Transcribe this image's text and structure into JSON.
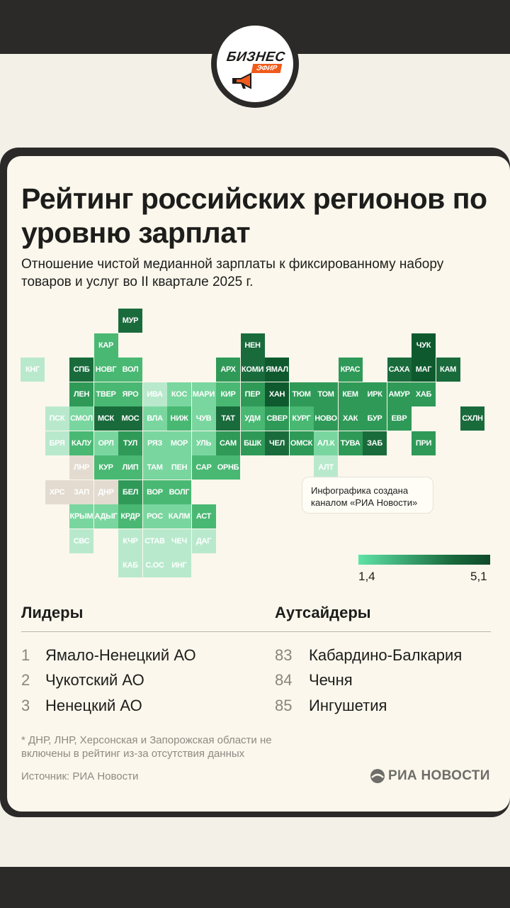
{
  "logo": {
    "word": "БИЗНЕС",
    "sub": "ЭФИР"
  },
  "title": "Рейтинг российских регионов по уровню зарплат",
  "subtitle": "Отношение чистой медианной зарплаты к фиксированному набору товаров и услуг во II квартале 2025 г.",
  "colors": {
    "c1": "#1a6b3c",
    "c2": "#0e5a2e",
    "c3": "#2f9a58",
    "c4": "#49b873",
    "c5": "#7ad69f",
    "c6": "#b9e9cd",
    "grey": "#e3dbd0",
    "accent": "#f05a1a"
  },
  "map": {
    "tiles": [
      {
        "label": "МУР",
        "col": 5,
        "row": 0,
        "c": "c1"
      },
      {
        "label": "НЕН",
        "col": 10,
        "row": 1,
        "c": "c1"
      },
      {
        "label": "ЧУК",
        "col": 17,
        "row": 1,
        "c": "c2"
      },
      {
        "label": "КАР",
        "col": 4,
        "row": 1,
        "c": "c4"
      },
      {
        "label": "КНГ",
        "col": 1,
        "row": 2,
        "c": "c6"
      },
      {
        "label": "СПБ",
        "col": 3,
        "row": 2,
        "c": "c1"
      },
      {
        "label": "НОВГ",
        "col": 4,
        "row": 2,
        "c": "c4"
      },
      {
        "label": "ВОЛ",
        "col": 5,
        "row": 2,
        "c": "c4"
      },
      {
        "label": "АРХ",
        "col": 9,
        "row": 2,
        "c": "c3"
      },
      {
        "label": "КОМИ",
        "col": 10,
        "row": 2,
        "c": "c1"
      },
      {
        "label": "ЯМАЛ",
        "col": 11,
        "row": 2,
        "c": "c2"
      },
      {
        "label": "КРАС",
        "col": 14,
        "row": 2,
        "c": "c3"
      },
      {
        "label": "САХА",
        "col": 16,
        "row": 2,
        "c": "c1"
      },
      {
        "label": "МАГ",
        "col": 17,
        "row": 2,
        "c": "c2"
      },
      {
        "label": "КАМ",
        "col": 18,
        "row": 2,
        "c": "c1"
      },
      {
        "label": "ЛЕН",
        "col": 3,
        "row": 3,
        "c": "c3"
      },
      {
        "label": "ТВЕР",
        "col": 4,
        "row": 3,
        "c": "c4"
      },
      {
        "label": "ЯРО",
        "col": 5,
        "row": 3,
        "c": "c4"
      },
      {
        "label": "ИВА",
        "col": 6,
        "row": 3,
        "c": "c6"
      },
      {
        "label": "КОС",
        "col": 7,
        "row": 3,
        "c": "c5"
      },
      {
        "label": "МАРИ",
        "col": 8,
        "row": 3,
        "c": "c5"
      },
      {
        "label": "КИР",
        "col": 9,
        "row": 3,
        "c": "c4"
      },
      {
        "label": "ПЕР",
        "col": 10,
        "row": 3,
        "c": "c3"
      },
      {
        "label": "ХАН",
        "col": 11,
        "row": 3,
        "c": "c2"
      },
      {
        "label": "ТЮМ",
        "col": 12,
        "row": 3,
        "c": "c3"
      },
      {
        "label": "ТОМ",
        "col": 13,
        "row": 3,
        "c": "c3"
      },
      {
        "label": "КЕМ",
        "col": 14,
        "row": 3,
        "c": "c3"
      },
      {
        "label": "ИРК",
        "col": 15,
        "row": 3,
        "c": "c3"
      },
      {
        "label": "АМУР",
        "col": 16,
        "row": 3,
        "c": "c3"
      },
      {
        "label": "ХАБ",
        "col": 17,
        "row": 3,
        "c": "c3"
      },
      {
        "label": "ПСК",
        "col": 2,
        "row": 4,
        "c": "c6"
      },
      {
        "label": "СМОЛ",
        "col": 3,
        "row": 4,
        "c": "c5"
      },
      {
        "label": "МСК",
        "col": 4,
        "row": 4,
        "c": "c1"
      },
      {
        "label": "МОС",
        "col": 5,
        "row": 4,
        "c": "c1"
      },
      {
        "label": "ВЛА",
        "col": 6,
        "row": 4,
        "c": "c5"
      },
      {
        "label": "НИЖ",
        "col": 7,
        "row": 4,
        "c": "c4"
      },
      {
        "label": "ЧУВ",
        "col": 8,
        "row": 4,
        "c": "c5"
      },
      {
        "label": "ТАТ",
        "col": 9,
        "row": 4,
        "c": "c1"
      },
      {
        "label": "УДМ",
        "col": 10,
        "row": 4,
        "c": "c4"
      },
      {
        "label": "СВЕР",
        "col": 11,
        "row": 4,
        "c": "c3"
      },
      {
        "label": "КУРГ",
        "col": 12,
        "row": 4,
        "c": "c4"
      },
      {
        "label": "НОВО",
        "col": 13,
        "row": 4,
        "c": "c3"
      },
      {
        "label": "ХАК",
        "col": 14,
        "row": 4,
        "c": "c3"
      },
      {
        "label": "БУР",
        "col": 15,
        "row": 4,
        "c": "c3"
      },
      {
        "label": "ЕВР",
        "col": 16,
        "row": 4,
        "c": "c3"
      },
      {
        "label": "СХЛН",
        "col": 19,
        "row": 4,
        "c": "c1"
      },
      {
        "label": "БРЯ",
        "col": 2,
        "row": 5,
        "c": "c6"
      },
      {
        "label": "КАЛУ",
        "col": 3,
        "row": 5,
        "c": "c4"
      },
      {
        "label": "ОРЛ",
        "col": 4,
        "row": 5,
        "c": "c5"
      },
      {
        "label": "ТУЛ",
        "col": 5,
        "row": 5,
        "c": "c3"
      },
      {
        "label": "РЯЗ",
        "col": 6,
        "row": 5,
        "c": "c5"
      },
      {
        "label": "МОР",
        "col": 7,
        "row": 5,
        "c": "c5"
      },
      {
        "label": "УЛЬ",
        "col": 8,
        "row": 5,
        "c": "c5"
      },
      {
        "label": "САМ",
        "col": 9,
        "row": 5,
        "c": "c3"
      },
      {
        "label": "БШК",
        "col": 10,
        "row": 5,
        "c": "c3"
      },
      {
        "label": "ЧЕЛ",
        "col": 11,
        "row": 5,
        "c": "c1"
      },
      {
        "label": "ОМСК",
        "col": 12,
        "row": 5,
        "c": "c3"
      },
      {
        "label": "АЛ.К",
        "col": 13,
        "row": 5,
        "c": "c5"
      },
      {
        "label": "ТУВА",
        "col": 14,
        "row": 5,
        "c": "c3"
      },
      {
        "label": "ЗАБ",
        "col": 15,
        "row": 5,
        "c": "c1"
      },
      {
        "label": "ПРИ",
        "col": 17,
        "row": 5,
        "c": "c3"
      },
      {
        "label": "ЛНР",
        "col": 3,
        "row": 6,
        "c": "grey"
      },
      {
        "label": "КУР",
        "col": 4,
        "row": 6,
        "c": "c4"
      },
      {
        "label": "ЛИП",
        "col": 5,
        "row": 6,
        "c": "c4"
      },
      {
        "label": "ТАМ",
        "col": 6,
        "row": 6,
        "c": "c5"
      },
      {
        "label": "ПЕН",
        "col": 7,
        "row": 6,
        "c": "c5"
      },
      {
        "label": "САР",
        "col": 8,
        "row": 6,
        "c": "c4"
      },
      {
        "label": "ОРНБ",
        "col": 9,
        "row": 6,
        "c": "c4"
      },
      {
        "label": "АЛТ",
        "col": 13,
        "row": 6,
        "c": "c6"
      },
      {
        "label": "ХРС",
        "col": 2,
        "row": 7,
        "c": "grey"
      },
      {
        "label": "ЗАП",
        "col": 3,
        "row": 7,
        "c": "grey"
      },
      {
        "label": "ДНР",
        "col": 4,
        "row": 7,
        "c": "grey"
      },
      {
        "label": "БЕЛ",
        "col": 5,
        "row": 7,
        "c": "c3"
      },
      {
        "label": "ВОР",
        "col": 6,
        "row": 7,
        "c": "c4"
      },
      {
        "label": "ВОЛГ",
        "col": 7,
        "row": 7,
        "c": "c4"
      },
      {
        "label": "КРЫМ",
        "col": 3,
        "row": 8,
        "c": "c5"
      },
      {
        "label": "АДЫГ",
        "col": 4,
        "row": 8,
        "c": "c5"
      },
      {
        "label": "КРДР",
        "col": 5,
        "row": 8,
        "c": "c4"
      },
      {
        "label": "РОС",
        "col": 6,
        "row": 8,
        "c": "c5"
      },
      {
        "label": "КАЛМ",
        "col": 7,
        "row": 8,
        "c": "c5"
      },
      {
        "label": "АСТ",
        "col": 8,
        "row": 8,
        "c": "c4"
      },
      {
        "label": "СВС",
        "col": 3,
        "row": 9,
        "c": "c6"
      },
      {
        "label": "КЧР",
        "col": 5,
        "row": 9,
        "c": "c6"
      },
      {
        "label": "СТАВ",
        "col": 6,
        "row": 9,
        "c": "c6"
      },
      {
        "label": "ЧЕЧ",
        "col": 7,
        "row": 9,
        "c": "c6"
      },
      {
        "label": "ДАГ",
        "col": 8,
        "row": 9,
        "c": "c6"
      },
      {
        "label": "КАБ",
        "col": 5,
        "row": 10,
        "c": "c6"
      },
      {
        "label": "С.ОС",
        "col": 6,
        "row": 10,
        "c": "c6"
      },
      {
        "label": "ИНГ",
        "col": 7,
        "row": 10,
        "c": "c6"
      }
    ]
  },
  "note": "Инфографика создана каналом «РИА Новости»",
  "legend": {
    "min": "1,4",
    "max": "5,1"
  },
  "leaders": {
    "heading": "Лидеры",
    "items": [
      {
        "rank": "1",
        "name": "Ямало-Ненецкий АО"
      },
      {
        "rank": "2",
        "name": "Чукотский АО"
      },
      {
        "rank": "3",
        "name": "Ненецкий АО"
      }
    ]
  },
  "outsiders": {
    "heading": "Аутсайдеры",
    "items": [
      {
        "rank": "83",
        "name": "Кабардино-Балкария"
      },
      {
        "rank": "84",
        "name": "Чечня"
      },
      {
        "rank": "85",
        "name": "Ингушетия"
      }
    ]
  },
  "footnote": "* ДНР, ЛНР, Херсонская и Запорожская области не включены в рейтинг из-за отсутствия данных",
  "source": "Источник: РИА Новости",
  "brand": "РИА НОВОСТИ"
}
